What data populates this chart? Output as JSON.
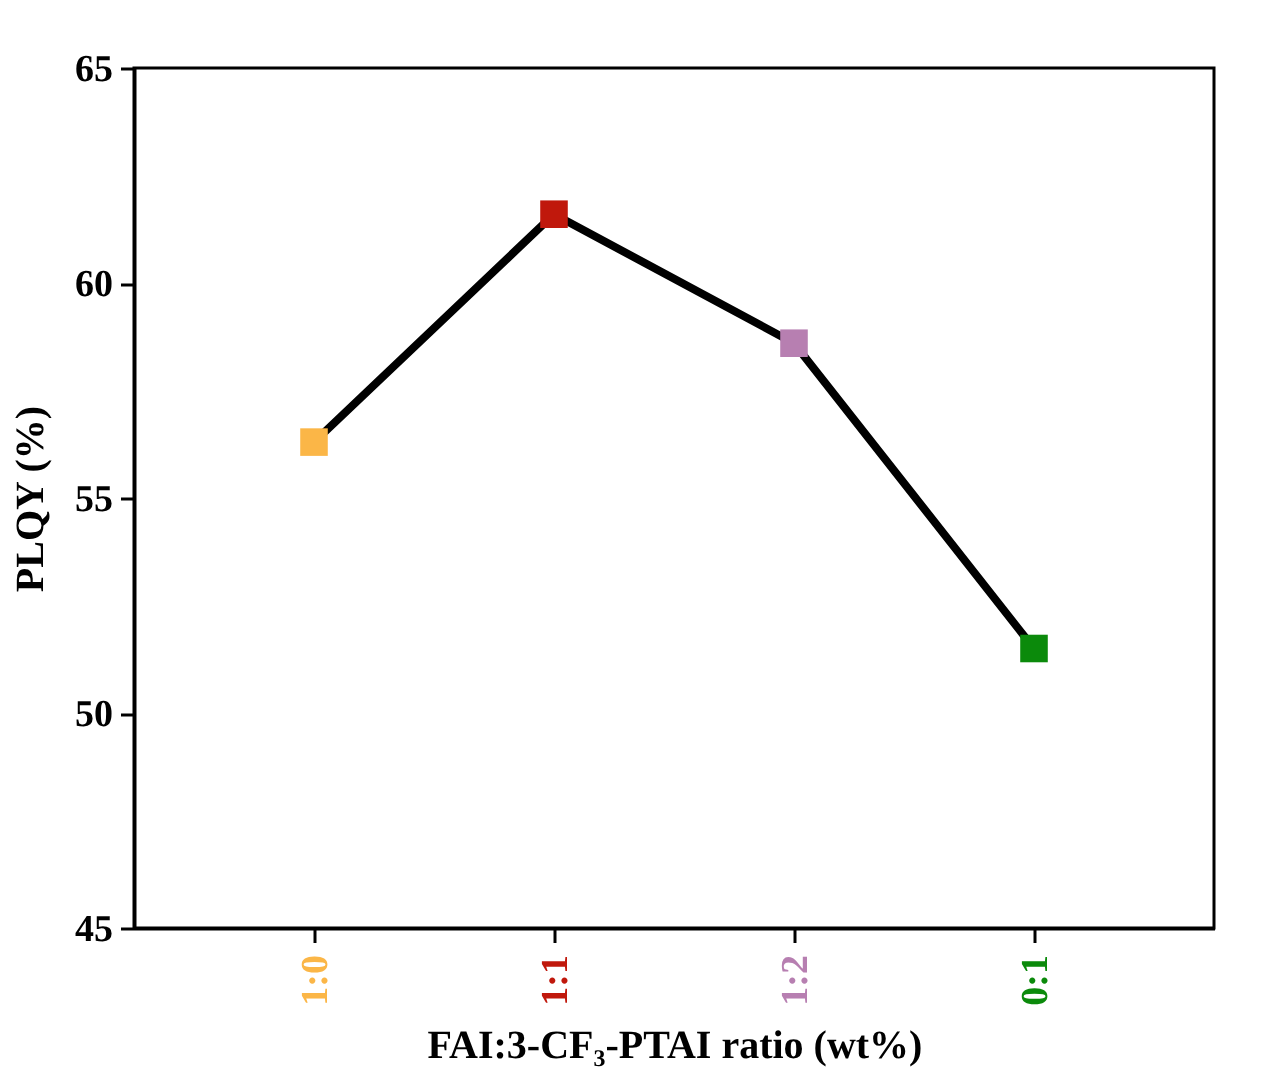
{
  "chart_data": {
    "type": "line",
    "xlabel": "FAI:3-CF₃-PTAI ratio (wt%)",
    "ylabel": "PLQY (%)",
    "categories": [
      "1:0",
      "1:1",
      "1:2",
      "0:1"
    ],
    "series": [
      {
        "color": "#000000",
        "colors": [
          "#fbb647",
          "#c0180c",
          "#b77fb1",
          "#0b8a0b"
        ],
        "values": [
          56.3,
          61.6,
          58.6,
          51.5
        ]
      }
    ],
    "ylim": [
      45,
      65
    ],
    "yticks": [
      45,
      50,
      55,
      60,
      65
    ],
    "marker": "square",
    "line_style": "solid"
  }
}
